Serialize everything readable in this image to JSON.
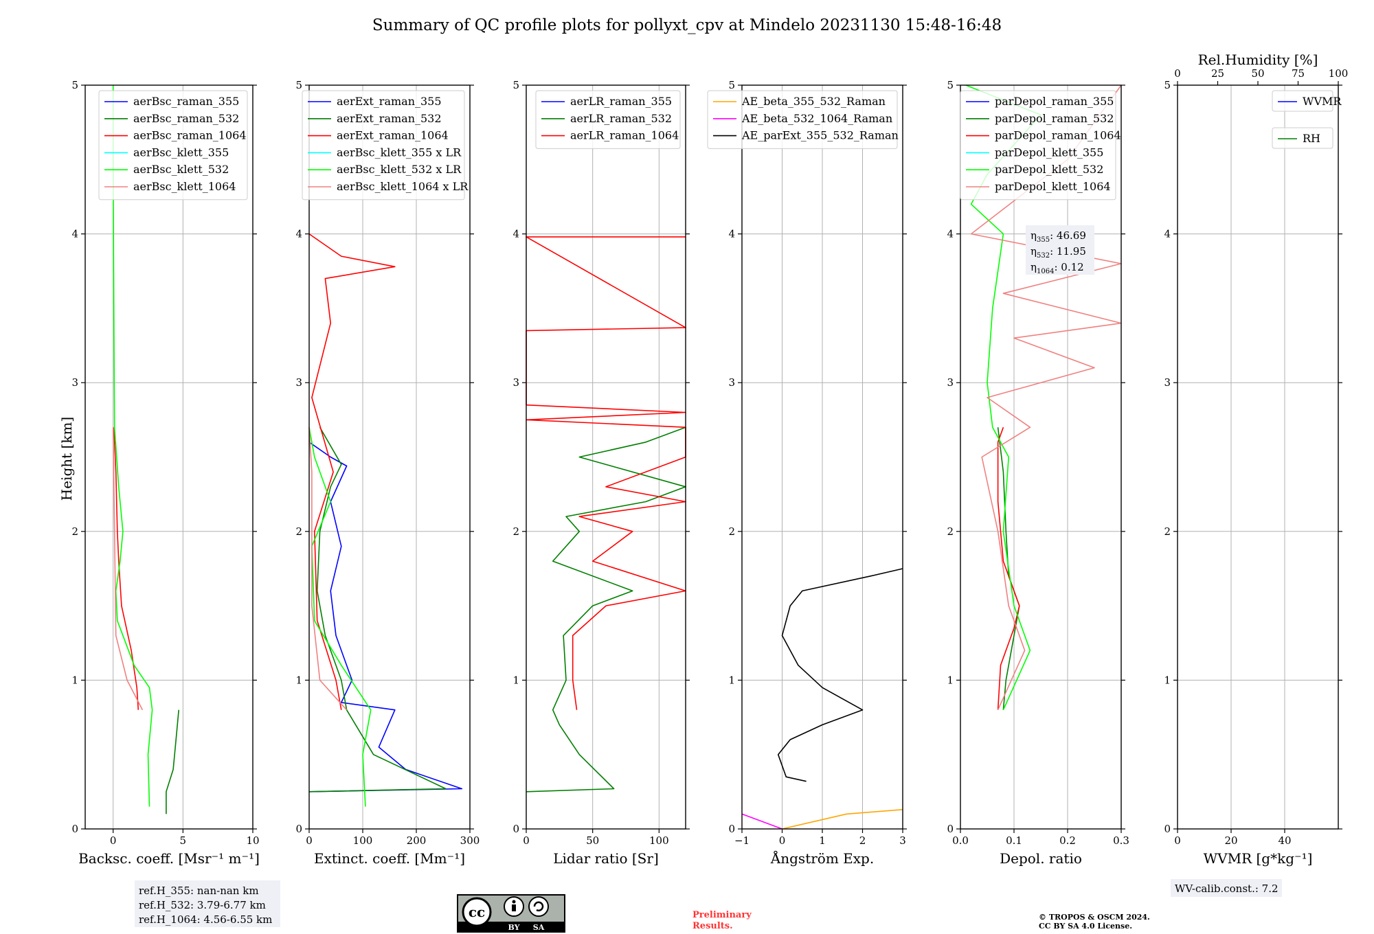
{
  "figure": {
    "title": "Summary of QC profile plots for pollyxt_cpv at Mindelo 20231130 15:48-16:48",
    "ylabel": "Height [km]",
    "y_ticks": [
      "0",
      "1",
      "2",
      "3",
      "4",
      "5"
    ]
  },
  "colors": {
    "blue": "#0000ff",
    "green": "#007f00",
    "red": "#ff0000",
    "cyan": "#00ffff",
    "lime": "#00ff00",
    "salmon": "#f08080",
    "orange": "#ffa500",
    "magenta": "#ff00ff",
    "black": "#000000",
    "grid": "#b0b0b0"
  },
  "annotations": {
    "refh": [
      "ref.H_355: nan-nan km",
      "ref.H_532: 3.79-6.77 km",
      "ref.H_1064: 4.56-6.55 km"
    ],
    "eta": [
      {
        "sym": "η",
        "sub": "355",
        "val": ": 46.69"
      },
      {
        "sym": "η",
        "sub": "532",
        "val": ": 11.95"
      },
      {
        "sym": "η",
        "sub": "1064",
        "val": ": 0.12"
      }
    ],
    "wv_calib": "WV-calib.const.: 7.2",
    "preliminary": [
      "Preliminary",
      "Results."
    ],
    "copyright": [
      "© TROPOS & OSCM 2024.",
      "CC BY SA 4.0 License."
    ],
    "license_badge": {
      "cc": "cc",
      "by": "BY",
      "sa": "SA"
    }
  },
  "chart_data": [
    {
      "type": "line",
      "name": "backscatter",
      "xlabel": "Backsc. coeff. [Msr⁻¹ m⁻¹]",
      "ylabel": "Height [km]",
      "xlim": [
        -2,
        10
      ],
      "ylim": [
        0,
        5
      ],
      "x_ticks": [
        "0",
        "5",
        "10"
      ],
      "legend": "top-right",
      "series": [
        {
          "name": "aerBsc_raman_355",
          "color": "#0000ff",
          "points": []
        },
        {
          "name": "aerBsc_raman_532",
          "color": "#007f00",
          "points": [
            [
              4.7,
              0.8
            ],
            [
              4.5,
              0.6
            ],
            [
              4.3,
              0.4
            ],
            [
              3.8,
              0.25
            ],
            [
              3.8,
              0.1
            ]
          ]
        },
        {
          "name": "aerBsc_raman_1064",
          "color": "#ff0000",
          "points": [
            [
              1.8,
              0.8
            ],
            [
              1.7,
              0.95
            ],
            [
              1.3,
              1.2
            ],
            [
              0.6,
              1.5
            ],
            [
              0.4,
              1.8
            ],
            [
              0.3,
              2.0
            ],
            [
              0.2,
              2.4
            ],
            [
              0.05,
              2.7
            ]
          ]
        },
        {
          "name": "aerBsc_klett_355",
          "color": "#00ffff",
          "points": []
        },
        {
          "name": "aerBsc_klett_532",
          "color": "#00ff00",
          "points": [
            [
              2.6,
              0.15
            ],
            [
              2.5,
              0.5
            ],
            [
              2.8,
              0.8
            ],
            [
              2.6,
              0.95
            ],
            [
              1.5,
              1.1
            ],
            [
              0.3,
              1.4
            ],
            [
              0.2,
              1.6
            ],
            [
              0.5,
              1.8
            ],
            [
              0.7,
              2.0
            ],
            [
              0.4,
              2.3
            ],
            [
              0.1,
              2.7
            ],
            [
              0.05,
              3.5
            ],
            [
              0.0,
              4.5
            ],
            [
              0.0,
              5.0
            ]
          ]
        },
        {
          "name": "aerBsc_klett_1064",
          "color": "#f08080",
          "points": [
            [
              2.1,
              0.8
            ],
            [
              1.0,
              1.0
            ],
            [
              0.2,
              1.3
            ],
            [
              0.1,
              2.0
            ],
            [
              0.0,
              2.7
            ]
          ]
        }
      ]
    },
    {
      "type": "line",
      "name": "extinction",
      "xlabel": "Extinct. coeff. [Mm⁻¹]",
      "ylabel": "Height [km]",
      "xlim": [
        0,
        300
      ],
      "ylim": [
        0,
        5
      ],
      "x_ticks": [
        "0",
        "100",
        "200",
        "300"
      ],
      "legend": "top-right",
      "series": [
        {
          "name": "aerExt_raman_355",
          "color": "#0000ff",
          "points": [
            [
              0,
              0.25
            ],
            [
              285,
              0.27
            ],
            [
              180,
              0.4
            ],
            [
              130,
              0.55
            ],
            [
              160,
              0.8
            ],
            [
              60,
              0.85
            ],
            [
              80,
              1.0
            ],
            [
              50,
              1.3
            ],
            [
              40,
              1.6
            ],
            [
              60,
              1.9
            ],
            [
              40,
              2.2
            ],
            [
              70,
              2.44
            ],
            [
              40,
              2.5
            ],
            [
              0,
              2.6
            ]
          ]
        },
        {
          "name": "aerExt_raman_532",
          "color": "#007f00",
          "points": [
            [
              0,
              0.25
            ],
            [
              255,
              0.27
            ],
            [
              120,
              0.5
            ],
            [
              70,
              0.8
            ],
            [
              60,
              1.0
            ],
            [
              30,
              1.3
            ],
            [
              15,
              1.6
            ],
            [
              20,
              2.0
            ],
            [
              40,
              2.3
            ],
            [
              60,
              2.45
            ],
            [
              20,
              2.7
            ]
          ]
        },
        {
          "name": "aerExt_raman_1064",
          "color": "#ff0000",
          "points": [
            [
              60,
              0.8
            ],
            [
              50,
              1.0
            ],
            [
              15,
              1.4
            ],
            [
              10,
              2.0
            ],
            [
              45,
              2.4
            ],
            [
              5,
              2.9
            ],
            [
              40,
              3.4
            ],
            [
              30,
              3.7
            ],
            [
              160,
              3.78
            ],
            [
              60,
              3.85
            ],
            [
              0,
              4.0
            ]
          ]
        },
        {
          "name": "aerBsc_klett_355 x LR",
          "color": "#00ffff",
          "points": []
        },
        {
          "name": "aerBsc_klett_532 x LR",
          "color": "#00ff00",
          "points": [
            [
              105,
              0.15
            ],
            [
              100,
              0.5
            ],
            [
              115,
              0.8
            ],
            [
              60,
              1.1
            ],
            [
              10,
              1.4
            ],
            [
              5,
              1.9
            ],
            [
              40,
              2.2
            ],
            [
              10,
              2.5
            ],
            [
              0,
              2.7
            ]
          ]
        },
        {
          "name": "aerBsc_klett_1064 x LR",
          "color": "#f08080",
          "points": [
            [
              70,
              0.8
            ],
            [
              20,
              1.0
            ],
            [
              5,
              1.5
            ],
            [
              5,
              2.4
            ],
            [
              0,
              2.7
            ]
          ]
        }
      ]
    },
    {
      "type": "line",
      "name": "lidar_ratio",
      "xlabel": "Lidar ratio [Sr]",
      "ylabel": "Height [km]",
      "xlim": [
        0,
        120
      ],
      "ylim": [
        0,
        5
      ],
      "x_ticks": [
        "0",
        "50",
        "100"
      ],
      "legend": "top-right",
      "series": [
        {
          "name": "aerLR_raman_355",
          "color": "#0000ff",
          "points": []
        },
        {
          "name": "aerLR_raman_532",
          "color": "#007f00",
          "points": [
            [
              0,
              0.25
            ],
            [
              66,
              0.27
            ],
            [
              40,
              0.5
            ],
            [
              25,
              0.7
            ],
            [
              20,
              0.8
            ],
            [
              30,
              1.0
            ],
            [
              28,
              1.3
            ],
            [
              50,
              1.5
            ],
            [
              80,
              1.6
            ],
            [
              20,
              1.8
            ],
            [
              40,
              2.0
            ],
            [
              30,
              2.1
            ],
            [
              90,
              2.2
            ],
            [
              120,
              2.3
            ],
            [
              40,
              2.5
            ],
            [
              90,
              2.6
            ],
            [
              120,
              2.7
            ]
          ]
        },
        {
          "name": "aerLR_raman_1064",
          "color": "#ff0000",
          "points": [
            [
              38,
              0.8
            ],
            [
              35,
              1.0
            ],
            [
              35,
              1.3
            ],
            [
              60,
              1.5
            ],
            [
              120,
              1.6
            ],
            [
              50,
              1.8
            ],
            [
              80,
              2.0
            ],
            [
              40,
              2.1
            ],
            [
              120,
              2.2
            ],
            [
              60,
              2.3
            ],
            [
              120,
              2.5
            ],
            [
              120,
              2.7
            ],
            [
              0,
              2.75
            ],
            [
              120,
              2.8
            ],
            [
              0,
              2.85
            ],
            [
              0,
              3.35
            ],
            [
              120,
              3.37
            ],
            [
              0,
              3.98
            ],
            [
              120,
              3.98
            ]
          ]
        }
      ]
    },
    {
      "type": "line",
      "name": "angstrom",
      "xlabel": "Ångström Exp.",
      "ylabel": "Height [km]",
      "xlim": [
        -1,
        3
      ],
      "ylim": [
        0,
        5
      ],
      "x_ticks": [
        "−1",
        "0",
        "1",
        "2",
        "3"
      ],
      "legend": "top-right",
      "series": [
        {
          "name": "AE_beta_355_532_Raman",
          "color": "#ffa500",
          "points": [
            [
              0,
              0.0
            ],
            [
              1.6,
              0.1
            ],
            [
              3,
              0.13
            ]
          ]
        },
        {
          "name": "AE_beta_532_1064_Raman",
          "color": "#ff00ff",
          "points": [
            [
              -1,
              0.1
            ],
            [
              0,
              0.0
            ]
          ]
        },
        {
          "name": "AE_parExt_355_532_Raman",
          "color": "#000000",
          "points": [
            [
              0.6,
              0.32
            ],
            [
              0.1,
              0.35
            ],
            [
              -0.1,
              0.5
            ],
            [
              0.2,
              0.6
            ],
            [
              1.0,
              0.7
            ],
            [
              2.0,
              0.8
            ],
            [
              1.0,
              0.95
            ],
            [
              0.4,
              1.1
            ],
            [
              0.0,
              1.3
            ],
            [
              0.2,
              1.5
            ],
            [
              0.5,
              1.6
            ],
            [
              2.2,
              1.7
            ],
            [
              3.0,
              1.75
            ]
          ]
        }
      ]
    },
    {
      "type": "line",
      "name": "depol",
      "xlabel": "Depol. ratio",
      "ylabel": "Height [km]",
      "xlim": [
        0,
        0.3
      ],
      "ylim": [
        0,
        5
      ],
      "x_ticks": [
        "0.0",
        "0.1",
        "0.2",
        "0.3"
      ],
      "legend": "top-right",
      "series": [
        {
          "name": "parDepol_raman_355",
          "color": "#0000ff",
          "points": []
        },
        {
          "name": "parDepol_raman_532",
          "color": "#007f00",
          "points": [
            [
              0.08,
              0.8
            ],
            [
              0.085,
              1.0
            ],
            [
              0.1,
              1.3
            ],
            [
              0.11,
              1.5
            ],
            [
              0.09,
              1.7
            ],
            [
              0.085,
              2.0
            ],
            [
              0.08,
              2.4
            ],
            [
              0.07,
              2.7
            ]
          ]
        },
        {
          "name": "parDepol_raman_1064",
          "color": "#ff0000",
          "points": [
            [
              0.07,
              0.8
            ],
            [
              0.075,
              1.1
            ],
            [
              0.1,
              1.35
            ],
            [
              0.11,
              1.5
            ],
            [
              0.08,
              1.8
            ],
            [
              0.07,
              2.2
            ],
            [
              0.07,
              2.6
            ],
            [
              0.08,
              2.7
            ]
          ]
        },
        {
          "name": "parDepol_klett_355",
          "color": "#00ffff",
          "points": []
        },
        {
          "name": "parDepol_klett_532",
          "color": "#00ff00",
          "points": [
            [
              0.08,
              0.8
            ],
            [
              0.13,
              1.2
            ],
            [
              0.1,
              1.5
            ],
            [
              0.08,
              2.0
            ],
            [
              0.09,
              2.5
            ],
            [
              0.06,
              2.7
            ],
            [
              0.05,
              3.0
            ],
            [
              0.06,
              3.5
            ],
            [
              0.08,
              4.0
            ],
            [
              0.02,
              4.2
            ],
            [
              0.05,
              4.4
            ],
            [
              0.15,
              4.8
            ],
            [
              0.01,
              5.0
            ]
          ]
        },
        {
          "name": "parDepol_klett_1064",
          "color": "#f08080",
          "points": [
            [
              0.07,
              0.8
            ],
            [
              0.12,
              1.2
            ],
            [
              0.09,
              1.5
            ],
            [
              0.07,
              2.0
            ],
            [
              0.04,
              2.5
            ],
            [
              0.13,
              2.7
            ],
            [
              0.05,
              2.9
            ],
            [
              0.25,
              3.1
            ],
            [
              0.1,
              3.3
            ],
            [
              0.3,
              3.4
            ],
            [
              0.08,
              3.6
            ],
            [
              0.3,
              3.8
            ],
            [
              0.02,
              4.0
            ],
            [
              0.2,
              4.5
            ],
            [
              0.3,
              5.0
            ]
          ]
        }
      ]
    },
    {
      "type": "line",
      "name": "wvmr",
      "xlabel": "WVMR [g*kg⁻¹]",
      "top_xlabel": "Rel.Humidity [%]",
      "ylabel": "Height [km]",
      "xlim": [
        0,
        60
      ],
      "ylim": [
        0,
        5
      ],
      "x_ticks": [
        "0",
        "20",
        "40"
      ],
      "top_xlim": [
        0,
        100
      ],
      "top_x_ticks": [
        "0",
        "25",
        "50",
        "75",
        "100"
      ],
      "legend": "top-right",
      "series": [
        {
          "name": "WVMR",
          "color": "#0000ff",
          "points": []
        },
        {
          "name": "RH",
          "color": "#007f00",
          "points": []
        }
      ]
    }
  ]
}
